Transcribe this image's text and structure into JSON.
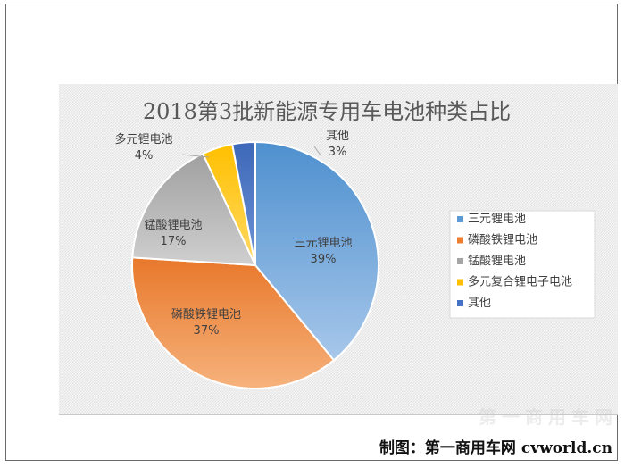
{
  "chart_data": {
    "type": "pie",
    "title": "2018第3批新能源专用车电池种类占比",
    "categories": [
      "三元锂电池",
      "磷酸铁锂电池",
      "锰酸锂电池",
      "多元复合锂电子电池",
      "其他"
    ],
    "values": [
      39,
      37,
      17,
      4,
      3
    ],
    "data_labels": [
      {
        "name": "三元锂电池",
        "pct": "39%"
      },
      {
        "name": "磷酸铁锂电池",
        "pct": "37%"
      },
      {
        "name": "锰酸锂电池",
        "pct": "17%"
      },
      {
        "name": "多元锂电池",
        "pct": "4%"
      },
      {
        "name": "其他",
        "pct": "3%"
      }
    ],
    "colors": [
      "#5b9bd5",
      "#ed7d31",
      "#a5a5a5",
      "#ffc000",
      "#4472c4"
    ],
    "legend_position": "right"
  },
  "credit": "制图：第一商用车网 cvworld.cn",
  "watermark": "第一商用车网"
}
